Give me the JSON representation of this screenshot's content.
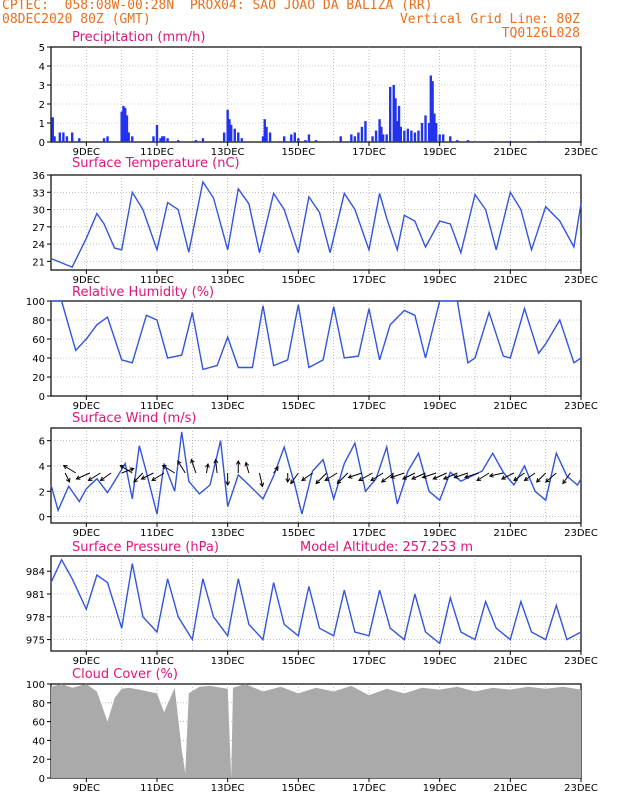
{
  "header": {
    "line1_left": "CPTEC:  058:08W-00:28N  PROX04: SAO JOAO DA BALIZA (RR)",
    "line2_left": "08DEC2020 80Z (GMT)",
    "line2_right": "Vertical Grid Line: 80Z",
    "line3_right": "TQ0126L028"
  },
  "colors": {
    "line": "#3355dd",
    "bar": "#2233ee",
    "cloud": "#aaaaaa",
    "title": "#e0147a",
    "header": "#e8701e"
  },
  "x_tick_labels": [
    "9DEC",
    "11DEC",
    "13DEC",
    "15DEC",
    "17DEC",
    "19DEC",
    "21DEC",
    "23DEC"
  ],
  "chart_data": [
    {
      "id": "precip",
      "type": "bar",
      "title": "Precipitation (mm/h)",
      "ylim": [
        0,
        5
      ],
      "yticks": [
        0,
        1,
        2,
        3,
        4,
        5
      ],
      "x_range_days": [
        8.0,
        23.0
      ],
      "x": [
        8.05,
        8.1,
        8.25,
        8.35,
        8.45,
        8.6,
        8.8,
        9.5,
        9.6,
        10.0,
        10.05,
        10.1,
        10.15,
        10.2,
        10.3,
        10.9,
        11.0,
        11.1,
        11.15,
        11.2,
        11.3,
        11.6,
        12.1,
        12.3,
        12.9,
        13.0,
        13.05,
        13.1,
        13.2,
        13.3,
        13.4,
        14.0,
        14.05,
        14.1,
        14.2,
        14.6,
        14.8,
        14.9,
        15.0,
        15.2,
        15.3,
        15.5,
        16.2,
        16.5,
        16.6,
        16.7,
        16.8,
        16.9,
        17.1,
        17.2,
        17.3,
        17.35,
        17.4,
        17.5,
        17.6,
        17.7,
        17.75,
        17.8,
        17.85,
        17.9,
        18.0,
        18.1,
        18.2,
        18.3,
        18.4,
        18.5,
        18.6,
        18.7,
        18.75,
        18.8,
        18.85,
        18.9,
        19.0,
        19.1,
        19.3,
        19.5,
        19.8,
        20.5,
        21.0,
        21.8
      ],
      "values": [
        1.3,
        0.3,
        0.5,
        0.5,
        0.3,
        0.5,
        0.2,
        0.2,
        0.3,
        1.6,
        1.9,
        1.8,
        1.4,
        0.5,
        0.3,
        0.3,
        0.9,
        0.2,
        0.3,
        0.3,
        0.2,
        0.1,
        0.1,
        0.2,
        0.5,
        1.7,
        1.2,
        0.9,
        0.7,
        0.5,
        0.2,
        0.3,
        1.2,
        0.8,
        0.5,
        0.3,
        0.4,
        0.5,
        0.2,
        0.1,
        0.4,
        0.1,
        0.3,
        0.4,
        0.3,
        0.5,
        0.8,
        1.1,
        0.3,
        0.6,
        1.2,
        0.8,
        0.4,
        0.4,
        2.9,
        3.0,
        2.3,
        1.1,
        1.9,
        0.8,
        0.6,
        0.7,
        0.6,
        0.5,
        0.6,
        1.0,
        1.4,
        1.0,
        3.5,
        3.2,
        1.5,
        1.0,
        0.4,
        0.4,
        0.3,
        0.1,
        0.1,
        0.05,
        0.05,
        0.05
      ]
    },
    {
      "id": "temp",
      "type": "line",
      "title": "Surface Temperature (nC)",
      "ylim": [
        19.5,
        36
      ],
      "yticks": [
        21,
        24,
        27,
        30,
        33,
        36
      ],
      "x": [
        8.0,
        8.6,
        9.0,
        9.3,
        9.5,
        9.8,
        10.0,
        10.3,
        10.6,
        11.0,
        11.3,
        11.6,
        11.9,
        12.3,
        12.6,
        13.0,
        13.3,
        13.6,
        13.9,
        14.3,
        14.6,
        15.0,
        15.3,
        15.6,
        15.9,
        16.3,
        16.6,
        17.0,
        17.3,
        17.5,
        17.8,
        18.0,
        18.3,
        18.6,
        19.0,
        19.3,
        19.6,
        20.0,
        20.3,
        20.6,
        21.0,
        21.3,
        21.6,
        22.0,
        22.4,
        22.8,
        23.0
      ],
      "values": [
        21.5,
        20.0,
        25.0,
        29.3,
        27.5,
        23.3,
        23.0,
        33.0,
        30.0,
        23.0,
        31.2,
        30.0,
        22.6,
        34.8,
        32.0,
        23.0,
        33.6,
        31.0,
        22.5,
        32.8,
        30.0,
        22.5,
        32.2,
        29.5,
        22.5,
        32.8,
        30.0,
        23.0,
        32.8,
        28.5,
        23.0,
        29.0,
        28.0,
        23.5,
        28.0,
        27.5,
        22.5,
        32.6,
        30.0,
        23.0,
        33.0,
        30.0,
        23.0,
        30.5,
        28.0,
        23.5,
        31.0
      ]
    },
    {
      "id": "rh",
      "type": "line",
      "title": "Relative Humidity (%)",
      "ylim": [
        0,
        100
      ],
      "yticks": [
        0,
        20,
        40,
        60,
        80,
        100
      ],
      "x": [
        8.0,
        8.3,
        8.7,
        9.0,
        9.3,
        9.6,
        10.0,
        10.3,
        10.7,
        11.0,
        11.3,
        11.7,
        12.0,
        12.3,
        12.7,
        13.0,
        13.3,
        13.7,
        14.0,
        14.3,
        14.7,
        15.0,
        15.3,
        15.7,
        16.0,
        16.3,
        16.7,
        17.0,
        17.3,
        17.6,
        18.0,
        18.3,
        18.6,
        19.0,
        19.5,
        19.8,
        20.0,
        20.4,
        20.8,
        21.0,
        21.4,
        21.8,
        22.0,
        22.4,
        22.8,
        23.0
      ],
      "values": [
        100,
        100,
        48,
        60,
        75,
        83,
        38,
        35,
        85,
        80,
        40,
        43,
        88,
        28,
        32,
        62,
        30,
        30,
        95,
        32,
        38,
        96,
        30,
        38,
        94,
        40,
        42,
        92,
        38,
        75,
        90,
        85,
        40,
        100,
        100,
        35,
        40,
        88,
        42,
        40,
        92,
        45,
        55,
        80,
        35,
        40
      ]
    },
    {
      "id": "wind",
      "type": "line",
      "title": "Surface Wind (m/s)",
      "ylim": [
        -0.5,
        7
      ],
      "yticks": [
        0,
        2,
        4,
        6
      ],
      "x": [
        8.0,
        8.2,
        8.5,
        8.8,
        9.0,
        9.3,
        9.6,
        9.8,
        10.1,
        10.3,
        10.5,
        10.7,
        11.0,
        11.2,
        11.5,
        11.7,
        11.9,
        12.2,
        12.5,
        12.8,
        13.0,
        13.3,
        13.6,
        14.0,
        14.3,
        14.6,
        14.9,
        15.1,
        15.4,
        15.7,
        16.0,
        16.3,
        16.6,
        16.9,
        17.2,
        17.5,
        17.8,
        18.1,
        18.4,
        18.7,
        19.0,
        19.3,
        19.6,
        19.9,
        20.2,
        20.5,
        20.8,
        21.1,
        21.4,
        21.7,
        22.0,
        22.3,
        22.6,
        22.9,
        23.0
      ],
      "values": [
        2.5,
        0.5,
        2.4,
        1.2,
        2.2,
        3.0,
        1.9,
        2.8,
        4.2,
        1.4,
        5.6,
        3.5,
        0.2,
        4.2,
        2.0,
        6.7,
        2.8,
        1.8,
        2.5,
        6.0,
        0.8,
        3.3,
        2.5,
        1.4,
        3.2,
        5.5,
        2.5,
        0.2,
        3.6,
        4.5,
        1.4,
        4.2,
        5.8,
        2.0,
        3.0,
        5.5,
        1.0,
        3.6,
        5.0,
        2.0,
        1.3,
        3.5,
        2.8,
        3.2,
        3.6,
        5.0,
        3.5,
        2.5,
        4.0,
        2.0,
        1.3,
        5.0,
        3.2,
        2.5,
        3.0
      ],
      "arrows_x": [
        8.4,
        8.7,
        9.1,
        9.4,
        9.7,
        10.0,
        10.3,
        10.6,
        10.9,
        11.2,
        11.5,
        11.8,
        12.1,
        12.4,
        12.7,
        13.0,
        13.3,
        13.6,
        13.9,
        14.3,
        14.7,
        15.0,
        15.4,
        15.8,
        16.1,
        16.4,
        16.8,
        17.1,
        17.4,
        17.7,
        18.0,
        18.3,
        18.6,
        18.9,
        19.2,
        19.5,
        19.8,
        20.1,
        20.4,
        20.8,
        21.1,
        21.4,
        21.7,
        22.0,
        22.3,
        22.7
      ],
      "arrows_u": [
        0.3,
        -0.8,
        -0.9,
        -0.8,
        -0.7,
        0.8,
        -0.8,
        -0.6,
        -0.8,
        -0.8,
        -0.8,
        -0.5,
        -0.3,
        0.1,
        -0.1,
        0.0,
        0.0,
        -0.2,
        0.2,
        0.3,
        0.0,
        -0.5,
        -0.7,
        -0.7,
        -0.8,
        -0.7,
        -0.9,
        -0.9,
        -0.8,
        -0.8,
        -0.9,
        -0.8,
        -0.9,
        -0.9,
        -0.9,
        -0.9,
        -0.9,
        -0.9,
        -0.8,
        -0.9,
        -0.8,
        -0.7,
        -0.7,
        -0.6,
        -0.7,
        -0.5
      ],
      "arrows_v": [
        -0.6,
        0.5,
        -0.4,
        -0.5,
        -0.5,
        0.3,
        0.5,
        -0.6,
        -0.4,
        -0.5,
        0.5,
        0.8,
        0.9,
        0.6,
        0.9,
        -0.8,
        0.8,
        0.7,
        -0.9,
        0.4,
        -0.6,
        -0.7,
        -0.5,
        -0.7,
        -0.5,
        -0.7,
        -0.3,
        -0.5,
        -0.5,
        -0.6,
        -0.3,
        -0.4,
        -0.4,
        -0.3,
        -0.4,
        -0.4,
        -0.3,
        -0.3,
        -0.5,
        -0.2,
        -0.4,
        -0.5,
        -0.5,
        -0.6,
        -0.6,
        -0.7
      ]
    },
    {
      "id": "pres",
      "type": "line",
      "title": "Surface Pressure (hPa)",
      "annotation": "Model Altitude: 257.253 m",
      "ylim": [
        973.5,
        986
      ],
      "yticks": [
        975,
        978,
        981,
        984
      ],
      "x": [
        8.0,
        8.3,
        8.6,
        9.0,
        9.3,
        9.6,
        10.0,
        10.3,
        10.6,
        11.0,
        11.3,
        11.6,
        12.0,
        12.3,
        12.6,
        13.0,
        13.3,
        13.6,
        14.0,
        14.3,
        14.6,
        15.0,
        15.3,
        15.6,
        16.0,
        16.3,
        16.6,
        17.0,
        17.3,
        17.6,
        18.0,
        18.3,
        18.6,
        19.0,
        19.3,
        19.6,
        20.0,
        20.3,
        20.6,
        21.0,
        21.3,
        21.6,
        22.0,
        22.3,
        22.6,
        23.0
      ],
      "values": [
        982.5,
        985.5,
        983.0,
        979.0,
        983.5,
        982.5,
        976.5,
        985.0,
        978.0,
        976.0,
        983.0,
        978.0,
        975.0,
        983.0,
        978.0,
        975.5,
        983.0,
        977.0,
        975.0,
        982.5,
        977.0,
        975.5,
        982.0,
        976.5,
        975.5,
        981.5,
        976.0,
        975.5,
        981.5,
        976.5,
        975.0,
        981.0,
        976.0,
        974.5,
        980.5,
        976.0,
        975.0,
        980.0,
        976.5,
        975.0,
        980.0,
        976.0,
        975.0,
        979.5,
        975.0,
        976.0
      ]
    },
    {
      "id": "cloud",
      "type": "area",
      "title": "Cloud Cover (%)",
      "ylim": [
        0,
        100
      ],
      "yticks": [
        0,
        20,
        40,
        60,
        80,
        100
      ],
      "x": [
        8.0,
        8.3,
        8.6,
        9.0,
        9.3,
        9.6,
        9.8,
        10.0,
        10.2,
        10.5,
        11.0,
        11.2,
        11.5,
        11.7,
        11.8,
        11.9,
        12.2,
        12.5,
        13.0,
        13.1,
        13.15,
        13.5,
        14.0,
        14.5,
        15.0,
        15.5,
        16.0,
        16.5,
        17.0,
        17.5,
        18.0,
        18.5,
        19.0,
        19.5,
        20.0,
        20.5,
        21.0,
        21.5,
        22.0,
        22.5,
        23.0
      ],
      "values": [
        97,
        100,
        96,
        100,
        92,
        60,
        85,
        95,
        96,
        94,
        90,
        70,
        96,
        30,
        5,
        90,
        97,
        98,
        95,
        0,
        96,
        100,
        92,
        97,
        90,
        96,
        92,
        98,
        88,
        95,
        90,
        96,
        94,
        97,
        92,
        96,
        94,
        97,
        95,
        97,
        94
      ]
    }
  ]
}
